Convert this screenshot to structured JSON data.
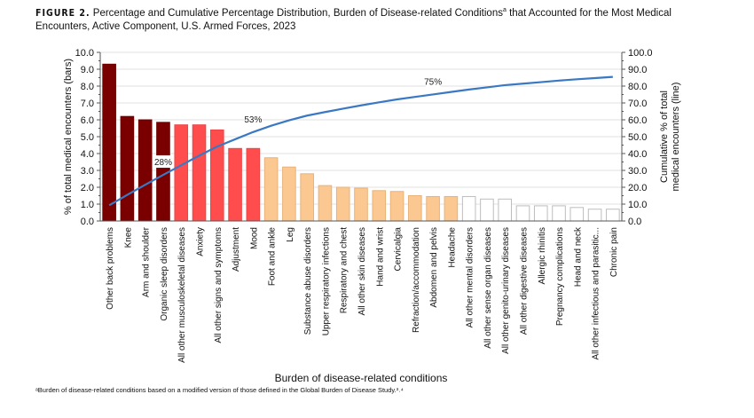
{
  "title": {
    "label": "FIGURE 2.",
    "text": "Percentage and Cumulative Percentage Distribution, Burden of Disease-related Conditions",
    "sup": "a",
    "text2": " that Accounted for the Most Medical Encounters, Active Component, U.S. Armed Forces, 2023"
  },
  "footnote": "ᵃBurden of disease-related conditions based on a modified version of those defined in the Global Burden of Disease Study.³˒⁴",
  "chart_data": {
    "type": "bar+line",
    "xlabel": "Burden of disease-related conditions",
    "ylabel": "% of total medical encounters (bars)",
    "y2label_line1": "Cumulative % of total",
    "y2label_line2": "medical encounters (line)",
    "ylim": [
      0,
      10
    ],
    "y2lim": [
      0,
      100
    ],
    "yticks": [
      "0.0",
      "1.0",
      "2.0",
      "3.0",
      "4.0",
      "5.0",
      "6.0",
      "7.0",
      "8.0",
      "9.0",
      "10.0"
    ],
    "y2ticks": [
      "0.0",
      "10.0",
      "20.0",
      "30.0",
      "40.0",
      "50.0",
      "60.0",
      "70.0",
      "80.0",
      "90.0",
      "100.0"
    ],
    "grid": true,
    "categories": [
      "Other back problems",
      "Knee",
      "Arm and shoulder",
      "Organic sleep disorders",
      "All other musculoskeletal diseases",
      "Anxiety",
      "All other signs and symptoms",
      "Adjustment",
      "Mood",
      "Foot and ankle",
      "Leg",
      "Substance abuse disorders",
      "Upper respiratory infections",
      "Respiratory and chest",
      "All other skin diseases",
      "Hand and wrist",
      "Cervicalgia",
      "Refraction/accommodation",
      "Abdomen and pelvis",
      "Headache",
      "All other mental disorders",
      "All other sense organ diseases",
      "All other genito-urinary diseases",
      "All other digestive diseases",
      "Allergic rhinitis",
      "Pregnancy complications",
      "Head and neck",
      "All other infectious and parasitic...",
      "Chronic pain"
    ],
    "values": [
      9.3,
      6.2,
      6.0,
      5.85,
      5.7,
      5.7,
      5.4,
      4.3,
      4.3,
      3.75,
      3.2,
      2.8,
      2.1,
      2.0,
      1.95,
      1.8,
      1.75,
      1.5,
      1.45,
      1.45,
      1.45,
      1.3,
      1.3,
      0.9,
      0.9,
      0.9,
      0.8,
      0.7,
      0.7
    ],
    "groups": [
      0,
      0,
      0,
      0,
      1,
      1,
      1,
      1,
      1,
      2,
      2,
      2,
      2,
      2,
      2,
      2,
      2,
      2,
      2,
      2,
      3,
      3,
      3,
      3,
      3,
      3,
      3,
      3,
      3
    ],
    "cumulative": [
      9.3,
      15.5,
      21.5,
      27.35,
      33.05,
      38.75,
      44.15,
      48.45,
      52.75,
      56.5,
      59.7,
      62.5,
      64.6,
      66.6,
      68.55,
      70.35,
      72.1,
      73.6,
      75.05,
      76.5,
      77.95,
      79.25,
      80.55,
      81.45,
      82.35,
      83.25,
      84.05,
      84.75,
      85.45
    ],
    "annotations": [
      {
        "index": 3,
        "text": "28%"
      },
      {
        "index": 8,
        "text": "53%"
      },
      {
        "index": 18,
        "text": "75%"
      }
    ],
    "colors": {
      "groups": [
        "#7a0000",
        "#ff4d4d",
        "#fcc891",
        "#ffffff"
      ],
      "line": "#3a78c3"
    }
  }
}
